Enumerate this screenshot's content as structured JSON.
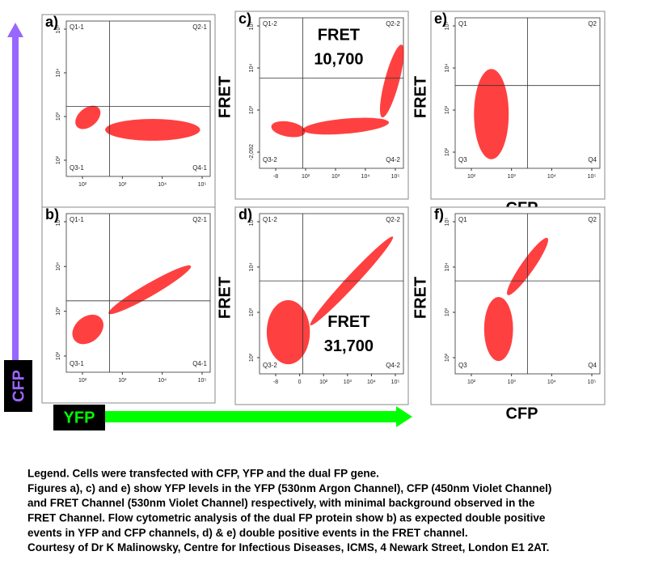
{
  "figure": {
    "side_labels": {
      "y_arrow": "CFP",
      "x_arrow": "YFP"
    },
    "panels": [
      {
        "label": "a)",
        "quadrants": [
          "Q1-1",
          "Q2-1",
          "Q3-1",
          "Q4-1"
        ],
        "xticks": [
          "10²",
          "10³",
          "10⁴",
          "10⁵"
        ],
        "yticks": [
          "10²",
          "10³",
          "10⁴",
          "10⁵"
        ]
      },
      {
        "label": "b)",
        "quadrants": [
          "Q1-1",
          "Q2-1",
          "Q3-1",
          "Q4-1"
        ],
        "xticks": [
          "10²",
          "10³",
          "10⁴",
          "10⁵"
        ],
        "yticks": [
          "10²",
          "10³",
          "10⁴",
          "10⁵"
        ]
      },
      {
        "label": "c)",
        "quadrants": [
          "Q1-2",
          "Q2-2",
          "Q3-2",
          "Q4-2"
        ],
        "xticks": [
          "-8",
          "10²",
          "10³",
          "10⁴",
          "10⁵"
        ],
        "yticks": [
          "-2,092",
          "10³",
          "10⁴",
          "10⁵"
        ],
        "ylabel": "FRET",
        "annotation": [
          "FRET",
          "10,700"
        ]
      },
      {
        "label": "d)",
        "quadrants": [
          "Q1-2",
          "Q2-2",
          "Q3-2",
          "Q4-2"
        ],
        "xticks": [
          "-8",
          "0",
          "10²",
          "10³",
          "10⁴",
          "10⁵"
        ],
        "yticks": [
          "10²",
          "10³",
          "10⁴",
          "10⁵"
        ],
        "ylabel": "FRET",
        "annotation": [
          "FRET",
          "31,700"
        ]
      },
      {
        "label": "e)",
        "quadrants": [
          "Q1",
          "Q2",
          "Q3",
          "Q4"
        ],
        "xticks": [
          "10²",
          "10³",
          "10⁴",
          "10⁵"
        ],
        "yticks": [
          "10²",
          "10³",
          "10⁴",
          "10⁵"
        ],
        "ylabel": "FRET",
        "xlabel": "CFP"
      },
      {
        "label": "f)",
        "quadrants": [
          "Q1",
          "Q2",
          "Q3",
          "Q4"
        ],
        "xticks": [
          "10²",
          "10³",
          "10⁴",
          "10⁵"
        ],
        "yticks": [
          "10²",
          "10³",
          "10⁴",
          "10⁵"
        ],
        "ylabel": "FRET",
        "xlabel": "CFP"
      }
    ],
    "legend": [
      "Legend. Cells were transfected with CFP, YFP and the dual FP gene.",
      "Figures a), c) and e) show YFP levels in the YFP (530nm Argon Channel), CFP (450nm Violet Channel)",
      "and FRET Channel (530nm Violet Channel) respectively, with minimal background observed in the",
      " FRET Channel. Flow cytometric analysis of the dual FP protein show b) as expected double  positive",
      "events in YFP and CFP channels, d) & e) double positive events in the FRET channel.",
      "Courtesy of Dr K  Malinowsky, Centre for Infectious Diseases, ICMS, 4 Newark Street, London E1 2AT."
    ]
  }
}
